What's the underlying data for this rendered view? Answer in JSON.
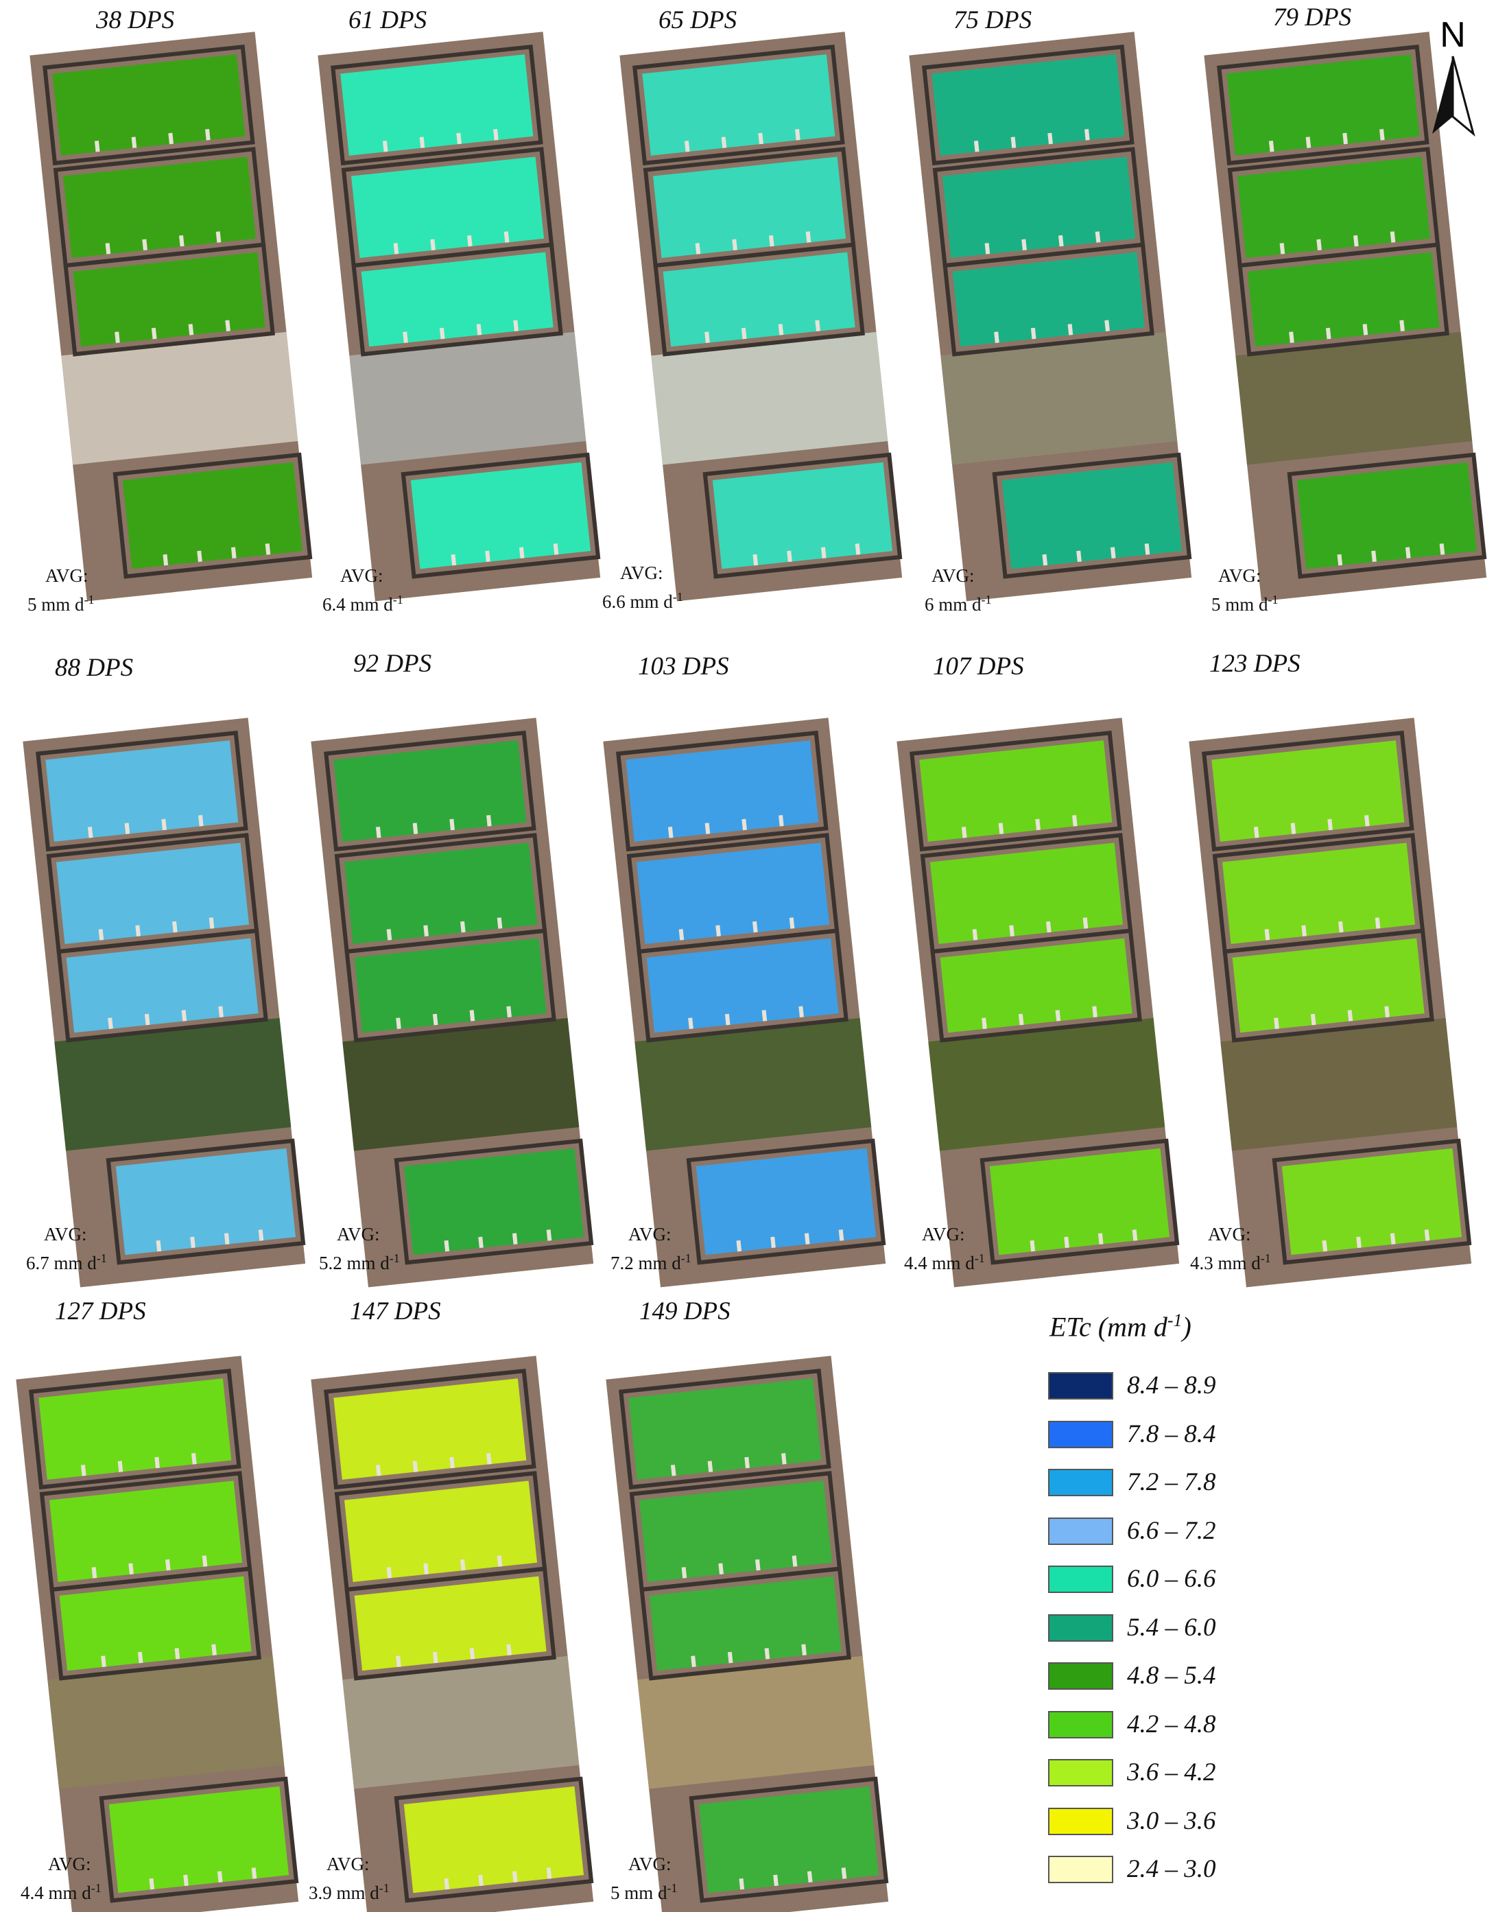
{
  "legend": {
    "title": "ETc (mm d",
    "title_sup": "-1",
    "title_close": ")",
    "classes": [
      {
        "label": "8.4 – 8.9",
        "color": "#0b2a6e"
      },
      {
        "label": "7.8 – 8.4",
        "color": "#1f6ef5"
      },
      {
        "label": "7.2 – 7.8",
        "color": "#1aa3e6"
      },
      {
        "label": "6.6 – 7.2",
        "color": "#79b6f5"
      },
      {
        "label": "6.0 – 6.6",
        "color": "#18e0a8"
      },
      {
        "label": "5.4 – 6.0",
        "color": "#12a57a"
      },
      {
        "label": "4.8 – 5.4",
        "color": "#2f9e10"
      },
      {
        "label": "4.2 – 4.8",
        "color": "#4fd018"
      },
      {
        "label": "3.6 – 4.2",
        "color": "#a9f01e"
      },
      {
        "label": "3.0 – 3.6",
        "color": "#f4f400"
      },
      {
        "label": "2.4 – 3.0",
        "color": "#fffcc0"
      }
    ]
  },
  "north_arrow": {
    "label": "N",
    "icon": "north-arrow-icon"
  },
  "panels": [
    {
      "dps": "38 DPS",
      "avg_title": "AVG:",
      "avg_value": "5 mm d",
      "avg_sup": "-1",
      "plot_color": "#3aa315",
      "band_color": "#c9c0b3"
    },
    {
      "dps": "61 DPS",
      "avg_title": "AVG:",
      "avg_value": "6.4 mm d",
      "avg_sup": "-1",
      "plot_color": "#2ee6b4",
      "band_color": "#a9a7a1"
    },
    {
      "dps": "65 DPS",
      "avg_title": "AVG:",
      "avg_value": "6.6 mm d",
      "avg_sup": "-1",
      "plot_color": "#39d8b8",
      "band_color": "#c3c7bb"
    },
    {
      "dps": "75 DPS",
      "avg_title": "AVG:",
      "avg_value": "6 mm d",
      "avg_sup": "-1",
      "plot_color": "#1bb084",
      "band_color": "#8e8770"
    },
    {
      "dps": "79 DPS",
      "avg_title": "AVG:",
      "avg_value": "5 mm d",
      "avg_sup": "-1",
      "plot_color": "#36a81d",
      "band_color": "#6f6b49"
    },
    {
      "dps": "88 DPS",
      "avg_title": "AVG:",
      "avg_value": "6.7 mm d",
      "avg_sup": "-1",
      "plot_color": "#5cbbe0",
      "band_color": "#3f5a30"
    },
    {
      "dps": "92 DPS",
      "avg_title": "AVG:",
      "avg_value": "5.2 mm d",
      "avg_sup": "-1",
      "plot_color": "#2ea83a",
      "band_color": "#44502c"
    },
    {
      "dps": "103 DPS",
      "avg_title": "AVG:",
      "avg_value": "7.2 mm d",
      "avg_sup": "-1",
      "plot_color": "#3e9fe6",
      "band_color": "#4d6133"
    },
    {
      "dps": "107 DPS",
      "avg_title": "AVG:",
      "avg_value": "4.4 mm d",
      "avg_sup": "-1",
      "plot_color": "#6ad41a",
      "band_color": "#55652f"
    },
    {
      "dps": "123 DPS",
      "avg_title": "AVG:",
      "avg_value": "4.3 mm d",
      "avg_sup": "-1",
      "plot_color": "#7ad91c",
      "band_color": "#6f6645"
    },
    {
      "dps": "127 DPS",
      "avg_title": "AVG:",
      "avg_value": "4.4 mm d",
      "avg_sup": "-1",
      "plot_color": "#6bdb17",
      "band_color": "#8c7f5c"
    },
    {
      "dps": "147 DPS",
      "avg_title": "AVG:",
      "avg_value": "3.9 mm d",
      "avg_sup": "-1",
      "plot_color": "#c9ea1c",
      "band_color": "#a39a86"
    },
    {
      "dps": "149 DPS",
      "avg_title": "AVG:",
      "avg_value": "5 mm d",
      "avg_sup": "-1",
      "plot_color": "#3cb03a",
      "band_color": "#a8946c"
    }
  ]
}
